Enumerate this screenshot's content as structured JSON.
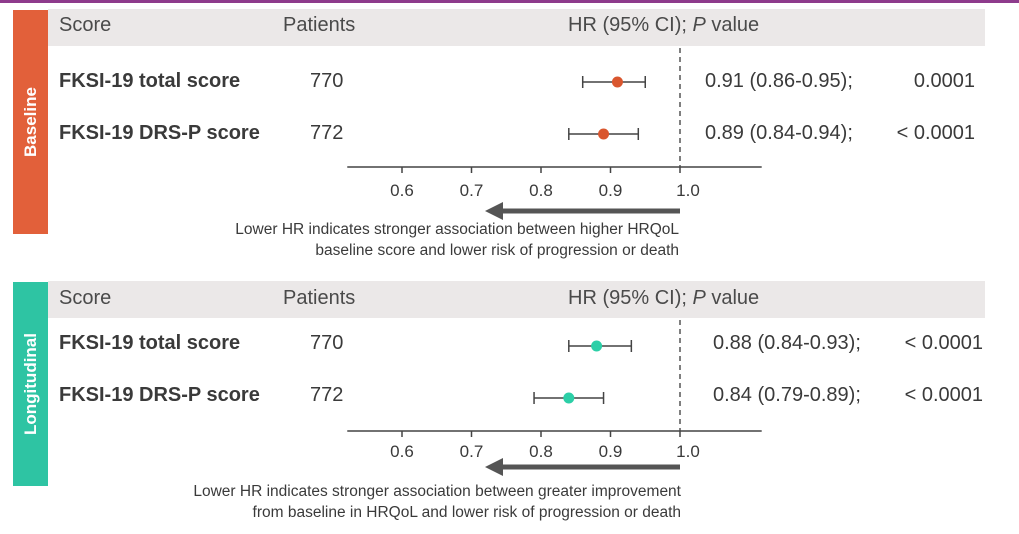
{
  "colors": {
    "baseline_tab": "#e2603a",
    "longitudinal_tab": "#2ec4a3",
    "baseline_point": "#d9562e",
    "longitudinal_point": "#2ccfa7",
    "top_rule": "#8e3b8c",
    "axis": "#444444"
  },
  "header": {
    "score": "Score",
    "patients": "Patients",
    "hr_prefix": "HR (95% CI); ",
    "hr_italic": "P",
    "hr_suffix": " value"
  },
  "chart_data": [
    {
      "type": "forest",
      "panel_label": "Baseline",
      "x_ticks": [
        0.6,
        0.7,
        0.8,
        0.9,
        1.0
      ],
      "x_tick_labels": [
        "0.6",
        "0.7",
        "0.8",
        "0.9",
        "1.0"
      ],
      "xlim": [
        0.55,
        1.06
      ],
      "reference_line": 1.0,
      "rows": [
        {
          "score": "FKSI-19 total score",
          "patients": "770",
          "hr": 0.91,
          "ci": [
            0.86,
            0.95
          ],
          "hr_text": "0.91 (0.86-0.95);",
          "p_text": "0.0001"
        },
        {
          "score": "FKSI-19 DRS-P score",
          "patients": "772",
          "hr": 0.89,
          "ci": [
            0.84,
            0.94
          ],
          "hr_text": "0.89 (0.84-0.94);",
          "p_text": "< 0.0001"
        }
      ],
      "note_line1": "Lower HR indicates stronger association between higher HRQoL",
      "note_line2": "baseline score and lower risk of progression or death"
    },
    {
      "type": "forest",
      "panel_label": "Longitudinal",
      "x_ticks": [
        0.6,
        0.7,
        0.8,
        0.9,
        1.0
      ],
      "x_tick_labels": [
        "0.6",
        "0.7",
        "0.8",
        "0.9",
        "1.0"
      ],
      "xlim": [
        0.55,
        1.06
      ],
      "reference_line": 1.0,
      "rows": [
        {
          "score": "FKSI-19 total score",
          "patients": "770",
          "hr": 0.88,
          "ci": [
            0.84,
            0.93
          ],
          "hr_text": "0.88 (0.84-0.93);",
          "p_text": "< 0.0001"
        },
        {
          "score": "FKSI-19 DRS-P score",
          "patients": "772",
          "hr": 0.84,
          "ci": [
            0.79,
            0.89
          ],
          "hr_text": "0.84 (0.79-0.89);",
          "p_text": "< 0.0001"
        }
      ],
      "note_line1": "Lower HR indicates stronger association between greater improvement",
      "note_line2": "from baseline in HRQoL and lower risk of progression or death"
    }
  ]
}
